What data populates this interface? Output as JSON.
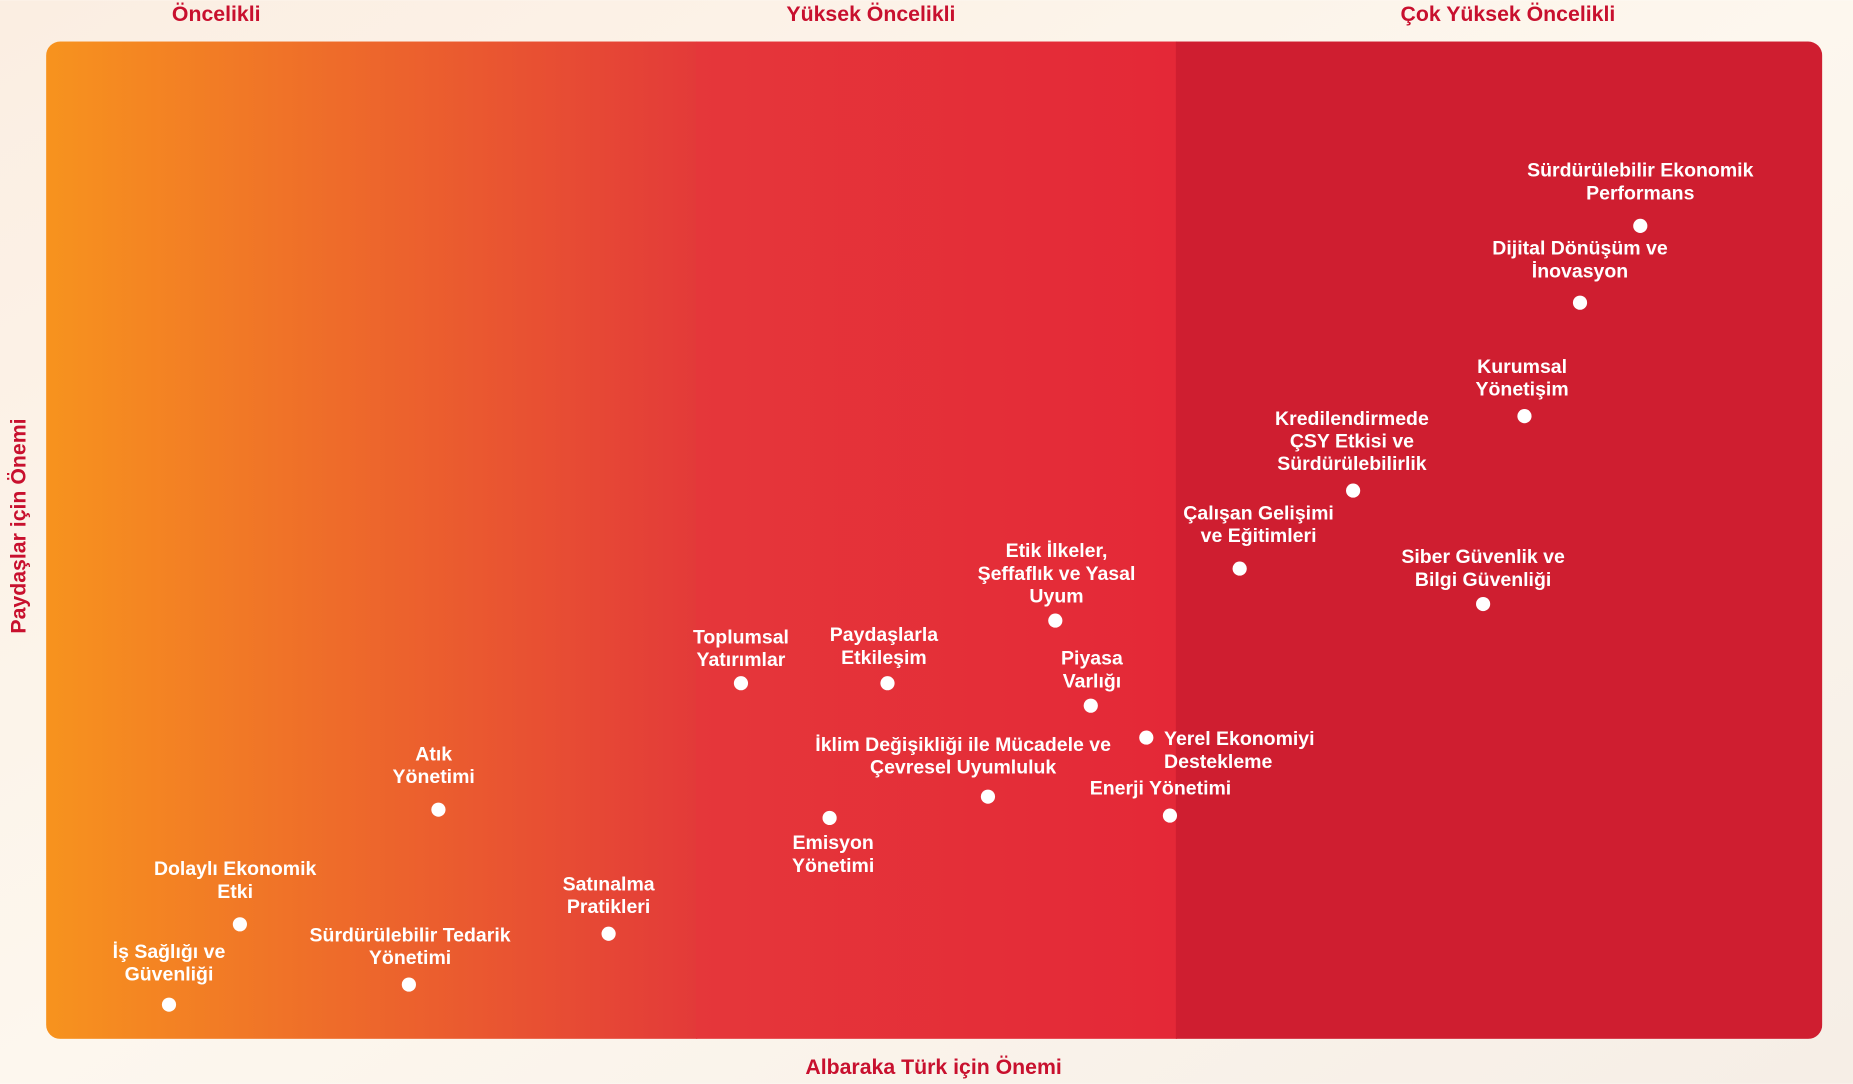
{
  "header": {
    "zones": [
      "Öncelikli",
      "Yüksek Öncelikli",
      "Çok Yüksek Öncelikli"
    ],
    "x_axis_label": "Albaraka Türk için Önemi",
    "y_axis_label": "Paydaşlar için Önemi"
  },
  "items": [
    {
      "lines": [
        "Sürdürülebilir Ekonomik",
        "Performans"
      ]
    },
    {
      "lines": [
        "Dijital Dönüşüm ve",
        "İnovasyon"
      ]
    },
    {
      "lines": [
        "Kurumsal",
        "Yönetişim"
      ]
    },
    {
      "lines": [
        "Kredilendirmede",
        "ÇSY Etkisi ve",
        "Sürdürülebilirlik"
      ]
    },
    {
      "lines": [
        "Çalışan Gelişimi",
        "ve Eğitimleri"
      ]
    },
    {
      "lines": [
        "Siber Güvenlik ve",
        "Bilgi Güvenliği"
      ]
    },
    {
      "lines": [
        "Etik İlkeler,",
        "Şeffaflık ve Yasal",
        "Uyum"
      ]
    },
    {
      "lines": [
        "Toplumsal",
        "Yatırımlar"
      ]
    },
    {
      "lines": [
        "Paydaşlarla",
        "Etkileşim"
      ]
    },
    {
      "lines": [
        "Piyasa",
        "Varlığı"
      ]
    },
    {
      "lines": [
        "Yerel Ekonomiyi",
        "Destekleme"
      ]
    },
    {
      "lines": [
        "İklim Değişikliği ile Mücadele ve",
        "Çevresel Uyumluluk"
      ]
    },
    {
      "lines": [
        "Enerji Yönetimi"
      ]
    },
    {
      "lines": [
        "Emisyon",
        "Yönetimi"
      ]
    },
    {
      "lines": [
        "Atık",
        "Yönetimi"
      ]
    },
    {
      "lines": [
        "Dolaylı Ekonomik",
        "Etki"
      ]
    },
    {
      "lines": [
        "Satınalma",
        "Pratikleri"
      ]
    },
    {
      "lines": [
        "Sürdürülebilir Tedarik",
        "Yönetimi"
      ]
    },
    {
      "lines": [
        "İş Sağlığı ve",
        "Güvenliği"
      ]
    }
  ]
}
